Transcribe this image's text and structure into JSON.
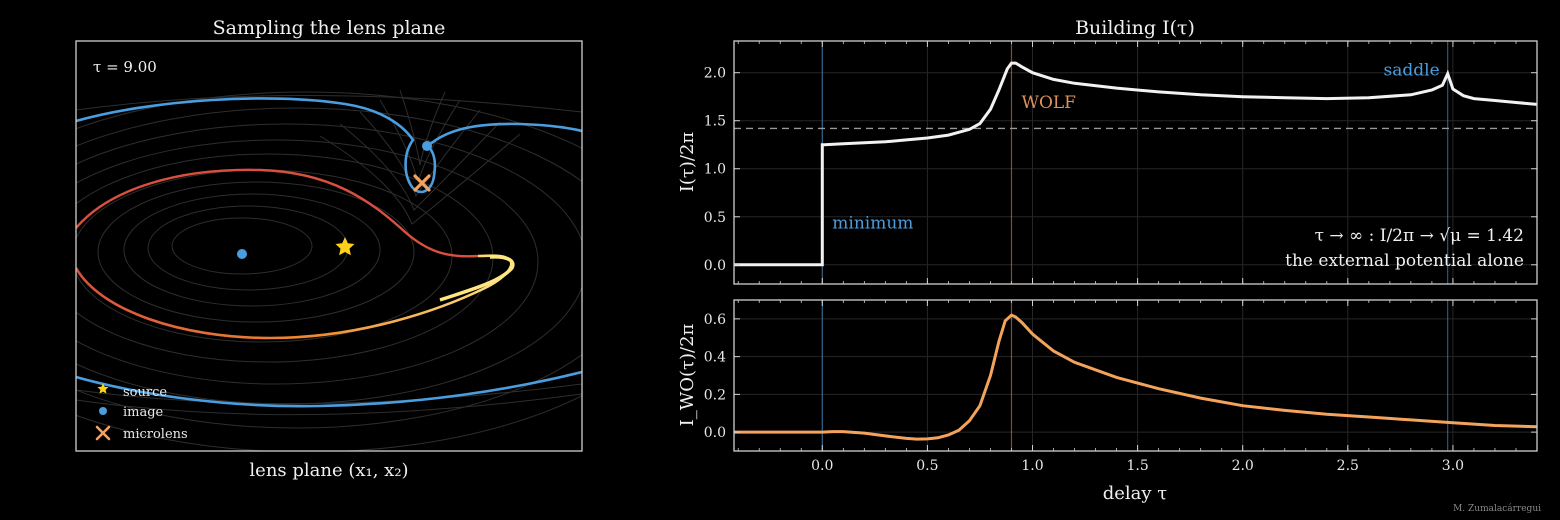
{
  "colors": {
    "background": "#000000",
    "frame": "#d0d0d0",
    "blue_curve": "#4a9ee0",
    "red_curve": "#d9503f",
    "orange_curve": "#f4a35c",
    "yellow_curve": "#ffe680",
    "star": "#ffd21a",
    "I_curve": "#f2f2f2",
    "wolf": "#e0905a",
    "guide": "#999999",
    "contours": "#333333"
  },
  "left_panel": {
    "title": "Sampling the lens plane",
    "xlabel": "lens plane (x₁, x₂)",
    "tau_label": "τ = 9.00",
    "legend": {
      "source": "source",
      "image": "image",
      "microlens": "microlens"
    },
    "markers": {
      "image_minimum": [
        -1.0,
        0.0
      ],
      "source": [
        0.6,
        0.05
      ],
      "image_saddle": [
        2.15,
        0.85
      ],
      "microlens": [
        2.1,
        0.55
      ]
    },
    "xlim": [
      -2.5,
      5.0
    ],
    "ylim": [
      -1.6,
      1.6
    ]
  },
  "chart_data": [
    {
      "type": "line",
      "title": "Building I(τ)",
      "ylabel": "I(τ)/2π",
      "xlim": [
        -0.42,
        3.4
      ],
      "ylim": [
        -0.2,
        2.33
      ],
      "x_ticks": [
        0.0,
        0.5,
        1.0,
        1.5,
        2.0,
        2.5,
        3.0
      ],
      "y_ticks": [
        0.0,
        0.5,
        1.0,
        1.5,
        2.0
      ],
      "grid": true,
      "series": [
        {
          "x": [
            -0.42,
            0.0,
            0.0,
            0.01,
            0.1,
            0.2,
            0.3,
            0.4,
            0.5,
            0.6,
            0.7,
            0.75,
            0.8,
            0.84,
            0.88,
            0.9,
            0.92,
            0.95,
            1.0,
            1.1,
            1.2,
            1.4,
            1.6,
            1.8,
            2.0,
            2.2,
            2.4,
            2.6,
            2.8,
            2.9,
            2.95,
            2.975,
            3.0,
            3.05,
            3.1,
            3.2,
            3.3,
            3.4
          ],
          "values": [
            0.0,
            0.0,
            1.25,
            1.25,
            1.26,
            1.27,
            1.28,
            1.3,
            1.32,
            1.35,
            1.41,
            1.47,
            1.62,
            1.82,
            2.04,
            2.1,
            2.1,
            2.06,
            2.0,
            1.93,
            1.89,
            1.84,
            1.8,
            1.77,
            1.75,
            1.74,
            1.73,
            1.74,
            1.77,
            1.82,
            1.87,
            1.99,
            1.83,
            1.76,
            1.73,
            1.71,
            1.69,
            1.67
          ]
        }
      ],
      "reference_line": {
        "y": 1.42,
        "style": "dashed"
      },
      "vlines": [
        {
          "x": 0.0,
          "label": "minimum",
          "color": "#4a9ee0"
        },
        {
          "x": 0.9,
          "label": "WOLF",
          "color": "#e0905a"
        },
        {
          "x": 2.975,
          "label": "saddle",
          "color": "#4a9ee0"
        }
      ],
      "annotation_line1": "τ → ∞ : I/2π → √μ = 1.42",
      "annotation_line2": "the external potential alone"
    },
    {
      "type": "line",
      "ylabel": "I_WO(τ)/2π",
      "xlabel": "delay τ",
      "xlim": [
        -0.42,
        3.4
      ],
      "ylim": [
        -0.1,
        0.7
      ],
      "x_ticks": [
        0.0,
        0.5,
        1.0,
        1.5,
        2.0,
        2.5,
        3.0
      ],
      "x_tick_labels": [
        "0.0",
        "0.5",
        "1.0",
        "1.5",
        "2.0",
        "2.5",
        "3.0"
      ],
      "y_ticks": [
        0.0,
        0.2,
        0.4,
        0.6
      ],
      "grid": true,
      "series": [
        {
          "x": [
            -0.42,
            -0.2,
            0.0,
            0.05,
            0.1,
            0.2,
            0.3,
            0.4,
            0.45,
            0.5,
            0.55,
            0.6,
            0.65,
            0.7,
            0.75,
            0.8,
            0.84,
            0.87,
            0.9,
            0.92,
            0.95,
            1.0,
            1.1,
            1.2,
            1.4,
            1.6,
            1.8,
            2.0,
            2.2,
            2.4,
            2.6,
            2.8,
            3.0,
            3.2,
            3.4
          ],
          "values": [
            0.0,
            0.0,
            0.0,
            0.003,
            0.003,
            -0.005,
            -0.02,
            -0.033,
            -0.037,
            -0.036,
            -0.03,
            -0.015,
            0.01,
            0.06,
            0.14,
            0.3,
            0.48,
            0.59,
            0.62,
            0.61,
            0.58,
            0.52,
            0.43,
            0.37,
            0.29,
            0.23,
            0.18,
            0.14,
            0.115,
            0.095,
            0.08,
            0.065,
            0.05,
            0.035,
            0.028
          ]
        }
      ],
      "vlines": [
        {
          "x": 0.0
        },
        {
          "x": 0.9
        },
        {
          "x": 2.975
        }
      ]
    }
  ],
  "credit": "M. Zumalacárregui"
}
